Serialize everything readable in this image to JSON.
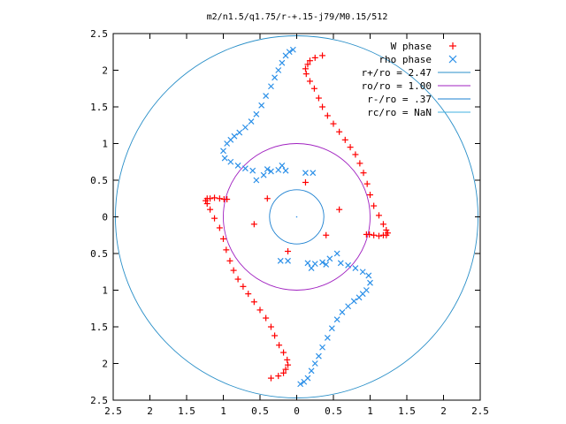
{
  "chart_data": {
    "type": "scatter",
    "title": "m2/n1.5/q1.75/r-+.15-j79/M0.15/512",
    "xlabel": "",
    "ylabel": "",
    "xlim": [
      -2.5,
      2.5
    ],
    "ylim": [
      -2.5,
      2.5
    ],
    "x_tick_labels": [
      "2.5",
      "2",
      "1.5",
      "1",
      "0.5",
      "0",
      "0.5",
      "1",
      "1.5",
      "2",
      "2.5"
    ],
    "y_tick_labels": [
      "2.5",
      "2",
      "1.5",
      "1",
      "0.5",
      "0",
      "0.5",
      "1",
      "1.5",
      "2",
      "2.5"
    ],
    "grid": false,
    "legend_position": "top-right",
    "legend": [
      {
        "label": "W phase",
        "marker": "plus",
        "color": "#ff0000"
      },
      {
        "label": "rho phase",
        "marker": "cross",
        "color": "#2a8fe8"
      },
      {
        "label": "r+/ro = 2.47",
        "marker": "line",
        "color": "#2a8fc8"
      },
      {
        "label": "ro/ro = 1.00",
        "marker": "line",
        "color": "#a020c0"
      },
      {
        "label": "r-/ro = .37",
        "marker": "line",
        "color": "#1a7fd0"
      },
      {
        "label": "rc/ro = NaN",
        "marker": "line",
        "color": "#40b0e0"
      }
    ],
    "circles": [
      {
        "name": "r+/ro = 2.47",
        "radius": 2.47,
        "color": "#2a8fc8"
      },
      {
        "name": "ro/ro = 1.00",
        "radius": 1.0,
        "color": "#a020c0"
      },
      {
        "name": "r-/ro = .37",
        "radius": 0.37,
        "color": "#1a7fd0"
      }
    ],
    "series": [
      {
        "name": "W phase",
        "color": "#ff0000",
        "x": [
          0.35,
          0.25,
          0.18,
          0.15,
          0.12,
          0.13,
          0.18,
          0.24,
          0.3,
          0.35,
          0.42,
          0.5,
          0.58,
          0.66,
          0.73,
          0.8,
          0.86,
          0.91,
          0.96,
          1.0,
          1.05,
          1.12,
          1.18,
          1.22,
          1.24,
          1.22,
          1.18,
          1.12,
          1.05,
          0.99,
          0.95,
          -0.35,
          -0.25,
          -0.18,
          -0.15,
          -0.12,
          -0.13,
          -0.18,
          -0.24,
          -0.3,
          -0.35,
          -0.42,
          -0.5,
          -0.58,
          -0.66,
          -0.73,
          -0.8,
          -0.86,
          -0.91,
          -0.96,
          -1.0,
          -1.05,
          -1.12,
          -1.18,
          -1.22,
          -1.24,
          -1.22,
          -1.18,
          -1.12,
          -1.05,
          -0.99,
          -0.95,
          0.4,
          -0.4,
          0.12,
          -0.12,
          0.58,
          -0.58
        ],
        "y": [
          2.2,
          2.17,
          2.13,
          2.08,
          2.02,
          1.95,
          1.85,
          1.75,
          1.62,
          1.5,
          1.38,
          1.27,
          1.16,
          1.05,
          0.95,
          0.85,
          0.73,
          0.6,
          0.45,
          0.3,
          0.15,
          0.02,
          -0.1,
          -0.18,
          -0.22,
          -0.25,
          -0.25,
          -0.26,
          -0.25,
          -0.24,
          -0.24,
          -2.2,
          -2.17,
          -2.13,
          -2.08,
          -2.02,
          -1.95,
          -1.85,
          -1.75,
          -1.62,
          -1.5,
          -1.38,
          -1.27,
          -1.16,
          -1.05,
          -0.95,
          -0.85,
          -0.73,
          -0.6,
          -0.45,
          -0.3,
          -0.15,
          -0.02,
          0.1,
          0.18,
          0.22,
          0.25,
          0.25,
          0.26,
          0.25,
          0.24,
          0.24,
          -0.25,
          0.25,
          0.47,
          -0.47,
          0.1,
          -0.1
        ]
      },
      {
        "name": "rho phase",
        "color": "#2a8fe8",
        "x": [
          -0.05,
          -0.1,
          -0.15,
          -0.2,
          -0.25,
          -0.3,
          -0.35,
          -0.42,
          -0.48,
          -0.55,
          -0.62,
          -0.7,
          -0.78,
          -0.85,
          -0.9,
          -0.95,
          -1.0,
          -0.98,
          -0.9,
          -0.8,
          -0.7,
          -0.6,
          -0.4,
          -0.2,
          0.05,
          0.1,
          0.15,
          0.2,
          0.25,
          0.3,
          0.35,
          0.42,
          0.48,
          0.55,
          0.62,
          0.7,
          0.78,
          0.85,
          0.9,
          0.95,
          1.0,
          0.98,
          0.9,
          0.8,
          0.7,
          0.6,
          0.4,
          0.2,
          -0.55,
          -0.45,
          -0.35,
          -0.25,
          -0.15,
          0.55,
          0.45,
          0.35,
          0.25,
          0.15,
          0.22,
          0.12,
          -0.22,
          -0.12
        ],
        "y": [
          2.28,
          2.25,
          2.2,
          2.1,
          2.0,
          1.9,
          1.78,
          1.65,
          1.52,
          1.4,
          1.3,
          1.22,
          1.15,
          1.1,
          1.05,
          1.0,
          0.9,
          0.8,
          0.75,
          0.7,
          0.66,
          0.63,
          0.65,
          0.7,
          -2.28,
          -2.25,
          -2.2,
          -2.1,
          -2.0,
          -1.9,
          -1.78,
          -1.65,
          -1.52,
          -1.4,
          -1.3,
          -1.22,
          -1.15,
          -1.1,
          -1.05,
          -1.0,
          -0.9,
          -0.8,
          -0.75,
          -0.7,
          -0.66,
          -0.63,
          -0.65,
          -0.7,
          0.5,
          0.57,
          0.62,
          0.64,
          0.63,
          -0.5,
          -0.57,
          -0.62,
          -0.64,
          -0.63,
          0.6,
          0.6,
          -0.6,
          -0.6
        ]
      }
    ]
  }
}
